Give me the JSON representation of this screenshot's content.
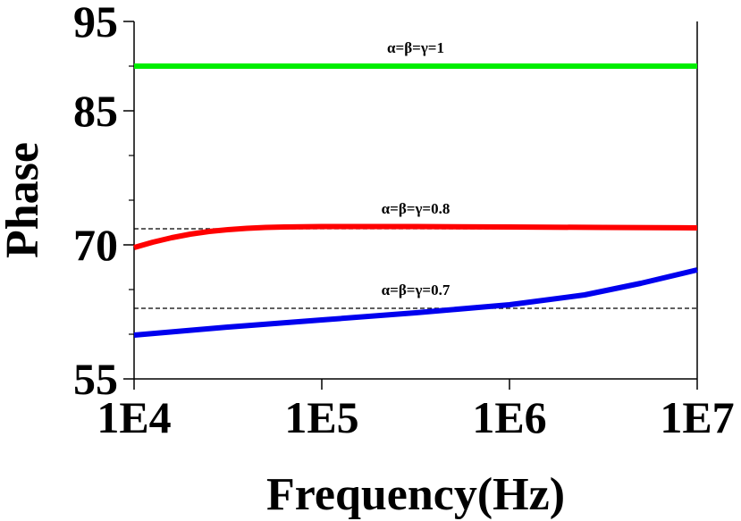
{
  "chart_data": {
    "type": "line",
    "title": "",
    "xlabel": "Frequency(Hz)",
    "ylabel": "Phase",
    "x_scale": "log",
    "xlim": [
      10000,
      10000000
    ],
    "ylim": [
      55,
      95
    ],
    "x_ticks": [
      {
        "value": 10000,
        "label": "1E4"
      },
      {
        "value": 100000,
        "label": "1E5"
      },
      {
        "value": 1000000,
        "label": "1E6"
      },
      {
        "value": 10000000,
        "label": "1E7"
      }
    ],
    "y_ticks": [
      {
        "value": 55,
        "label": "55"
      },
      {
        "value": 70,
        "label": "70"
      },
      {
        "value": 85,
        "label": "85"
      },
      {
        "value": 95,
        "label": "95"
      }
    ],
    "y_minor_ticks": [
      60,
      65,
      75,
      80,
      90
    ],
    "series": [
      {
        "name": "α=β=γ=1",
        "color": "#00ee00",
        "x": [
          10000,
          31623,
          100000,
          316228,
          1000000,
          3162278,
          10000000
        ],
        "y": [
          90,
          90,
          90,
          90,
          90,
          90,
          90
        ]
      },
      {
        "name": "α=β=γ=0.8",
        "color": "#ff0000",
        "x": [
          10000,
          12589,
          15849,
          19953,
          25119,
          31623,
          39811,
          50119,
          63096,
          100000,
          316228,
          1000000,
          3162278,
          10000000
        ],
        "y": [
          69.7,
          70.3,
          70.8,
          71.2,
          71.5,
          71.7,
          71.85,
          71.95,
          72.0,
          72.05,
          72.05,
          72.0,
          71.95,
          71.9
        ]
      },
      {
        "name": "α=β=γ=0.7",
        "color": "#0000ee",
        "x": [
          10000,
          31623,
          100000,
          316228,
          1000000,
          2511886,
          5011872,
          10000000
        ],
        "y": [
          59.9,
          60.8,
          61.6,
          62.4,
          63.3,
          64.4,
          65.7,
          67.2
        ]
      }
    ],
    "reference_lines": [
      {
        "y": 71.8,
        "style": "dashed",
        "color": "#000000"
      },
      {
        "y": 62.9,
        "style": "dashed",
        "color": "#000000"
      }
    ],
    "annotations": [
      {
        "text": "α=β=γ=1",
        "x": 316228,
        "y": 91.5
      },
      {
        "text": "α=β=γ=0.8",
        "x": 316228,
        "y": 73.5
      },
      {
        "text": "α=β=γ=0.7",
        "x": 316228,
        "y": 64.4
      }
    ]
  }
}
